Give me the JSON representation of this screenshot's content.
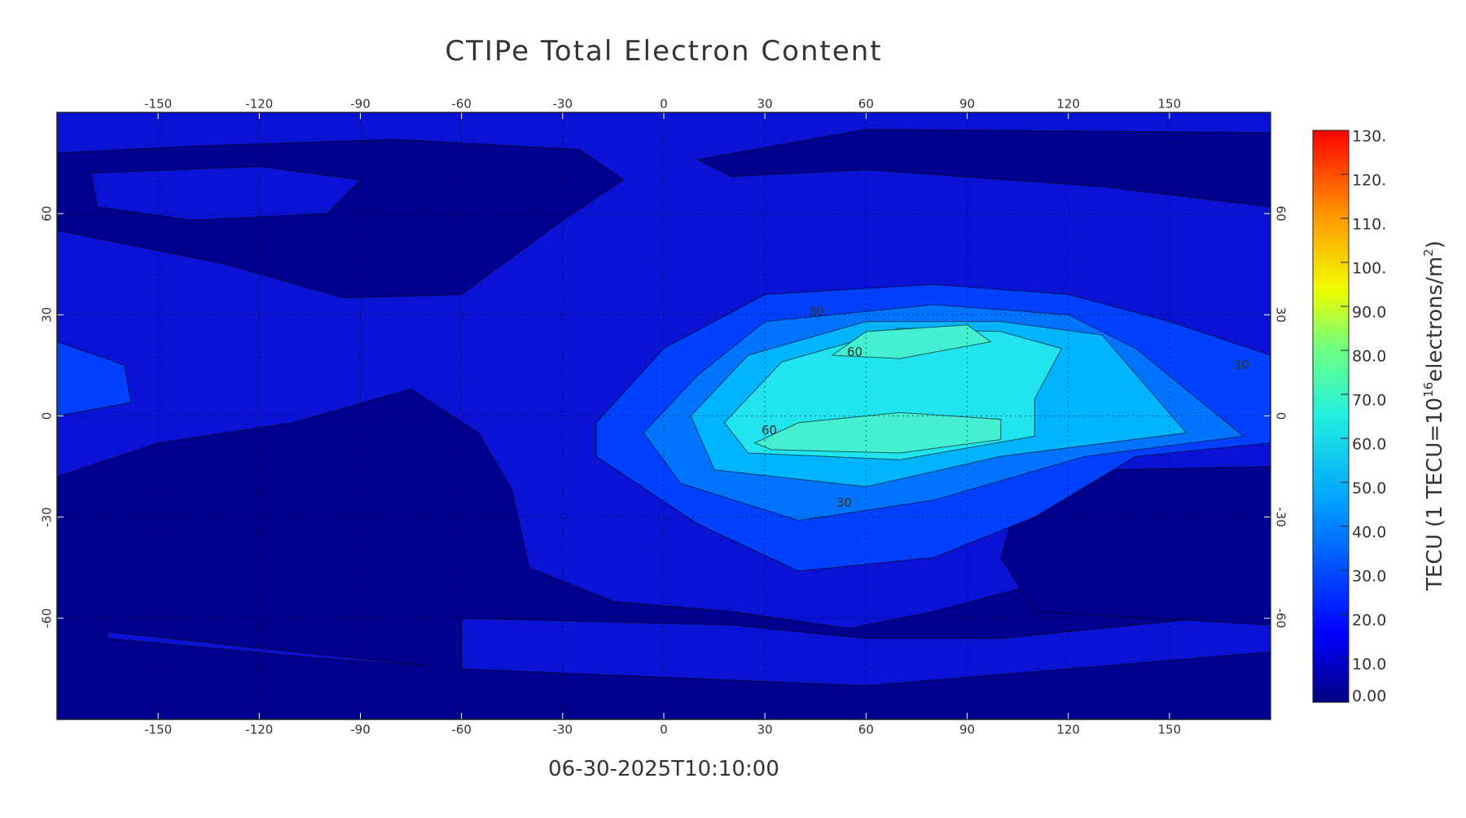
{
  "map": {
    "title": "CTIPe Total Electron Content",
    "timestamp": "06-30-2025T10:10:00",
    "xlim": [
      -180,
      180
    ],
    "ylim": [
      -90,
      90
    ],
    "xticks": [
      -150,
      -120,
      -90,
      -60,
      -30,
      0,
      30,
      60,
      90,
      120,
      150
    ],
    "yticks": [
      -60,
      -30,
      0,
      30,
      60
    ],
    "contour_labels": [
      30,
      60,
      60,
      30,
      30
    ]
  },
  "colorbar": {
    "lim": [
      0,
      130
    ],
    "ticks": [
      {
        "value": 0,
        "label": "0.00"
      },
      {
        "value": 10,
        "label": "10.0"
      },
      {
        "value": 20,
        "label": "20.0"
      },
      {
        "value": 30,
        "label": "30.0"
      },
      {
        "value": 40,
        "label": "40.0"
      },
      {
        "value": 50,
        "label": "50.0"
      },
      {
        "value": 60,
        "label": "60.0"
      },
      {
        "value": 70,
        "label": "70.0"
      },
      {
        "value": 80,
        "label": "80.0"
      },
      {
        "value": 90,
        "label": "90.0"
      },
      {
        "value": 100,
        "label": "100."
      },
      {
        "value": 110,
        "label": "110."
      },
      {
        "value": 120,
        "label": "120."
      },
      {
        "value": 130,
        "label": "130."
      }
    ],
    "label_parts": [
      "TECU (1 TECU=10",
      "16",
      "electrons/m",
      "2",
      ")"
    ]
  }
}
